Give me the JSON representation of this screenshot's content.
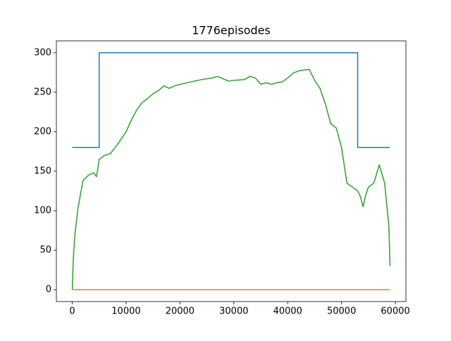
{
  "chart_data": {
    "type": "line",
    "title": "1776episodes",
    "xlim": [
      -2950,
      61950
    ],
    "ylim": [
      -15,
      315
    ],
    "xticks": [
      0,
      10000,
      20000,
      30000,
      40000,
      50000,
      60000
    ],
    "yticks": [
      0,
      50,
      100,
      150,
      200,
      250,
      300
    ],
    "series": [
      {
        "color": "#1f77b4",
        "x": [
          0,
          5000,
          5000,
          53000,
          53000,
          59000
        ],
        "values": [
          180,
          180,
          300,
          300,
          180,
          180
        ]
      },
      {
        "color": "#ff7f0e",
        "x": [
          0,
          59000
        ],
        "values": [
          0,
          0
        ]
      },
      {
        "color": "#2ca02c",
        "x": [
          0,
          200,
          500,
          1000,
          1500,
          2000,
          3000,
          4000,
          4500,
          5000,
          6000,
          7000,
          8000,
          9000,
          10000,
          11000,
          12000,
          13000,
          14000,
          15000,
          16000,
          17000,
          18000,
          19000,
          20000,
          22000,
          24000,
          26000,
          27000,
          28000,
          29000,
          30000,
          32000,
          33000,
          34000,
          35000,
          36000,
          37000,
          38000,
          39000,
          40000,
          41000,
          42000,
          43000,
          44000,
          45000,
          46000,
          47000,
          48000,
          49000,
          50000,
          51000,
          52000,
          53000,
          53500,
          54000,
          54500,
          55000,
          56000,
          57000,
          58000,
          58500,
          58800,
          59000
        ],
        "values": [
          0,
          40,
          70,
          100,
          120,
          138,
          145,
          148,
          143,
          165,
          170,
          172,
          180,
          190,
          200,
          215,
          228,
          237,
          242,
          248,
          252,
          258,
          255,
          258,
          260,
          263,
          266,
          268,
          270,
          267,
          264,
          265,
          266,
          270,
          268,
          260,
          262,
          260,
          262,
          263,
          268,
          274,
          277,
          278,
          279,
          265,
          255,
          235,
          210,
          205,
          180,
          135,
          130,
          125,
          118,
          105,
          120,
          130,
          135,
          158,
          135,
          100,
          80,
          30
        ]
      }
    ]
  }
}
